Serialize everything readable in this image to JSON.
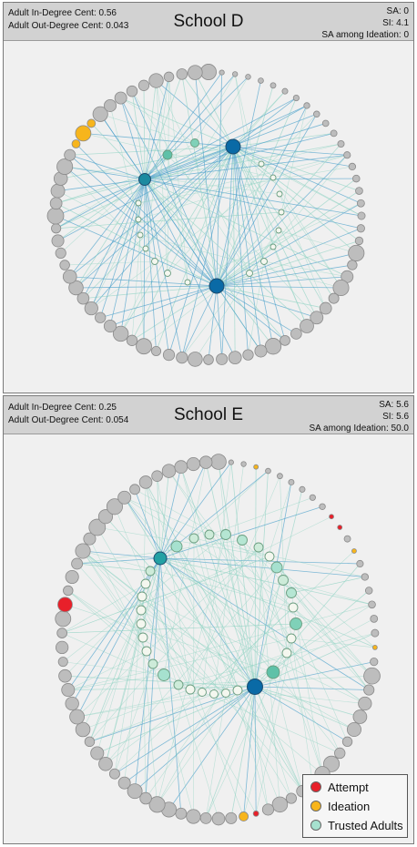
{
  "panels": [
    {
      "title": "School D",
      "in_degree": "Adult In-Degree Cent: 0.56",
      "out_degree": "Adult Out-Degree Cent: 0.043",
      "sa": "SA: 0",
      "si": "SI: 4.1",
      "sa_ideation": "SA among Ideation: 0"
    },
    {
      "title": "School E",
      "in_degree": "Adult In-Degree Cent: 0.25",
      "out_degree": "Adult Out-Degree Cent: 0.054",
      "sa": "SA: 5.6",
      "si": "SI: 5.6",
      "sa_ideation": "SA among Ideation: 50.0"
    }
  ],
  "legend": {
    "attempt": "Attempt",
    "ideation": "Ideation",
    "trusted": "Trusted Adults"
  },
  "colors": {
    "attempt": "#e8202a",
    "ideation": "#f7b51c",
    "trusted": "#a6e1cf",
    "student": "#bdbdbd",
    "hub": "#0a6aa6",
    "edge_student": "#3f9bc7",
    "edge_adult": "#8fd3c3"
  }
}
